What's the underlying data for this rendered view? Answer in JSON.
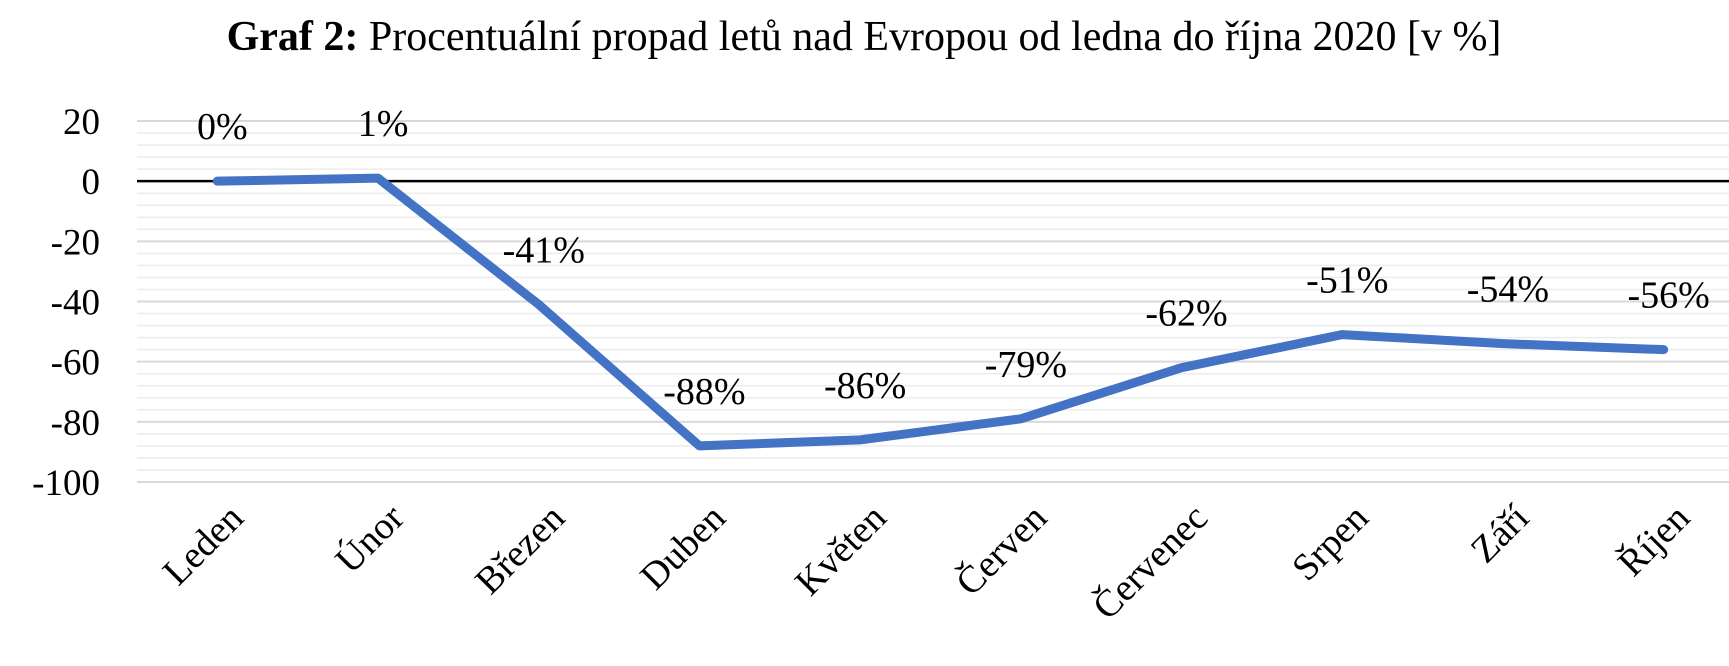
{
  "chart_data": {
    "type": "line",
    "title_lead": "Graf 2:",
    "title": "Procentuální propad letů nad Evropou od ledna do října 2020 [v %]",
    "categories": [
      "Leden",
      "Únor",
      "Březen",
      "Duben",
      "Květen",
      "Červen",
      "Červenec",
      "Srpen",
      "Září",
      "Říjen"
    ],
    "series": [
      {
        "color": "#4472c4",
        "values": [
          0,
          1,
          -41,
          -88,
          -86,
          -79,
          -62,
          -51,
          -54,
          -56
        ],
        "value_labels": [
          "0%",
          "1%",
          "-41%",
          "-88%",
          "-86%",
          "-79%",
          "-62%",
          "-51%",
          "-54%",
          "-56%"
        ]
      }
    ],
    "ylim": [
      -100,
      20
    ],
    "yticks": [
      20,
      0,
      -20,
      -40,
      -60,
      -80,
      -100
    ],
    "grid": true
  }
}
